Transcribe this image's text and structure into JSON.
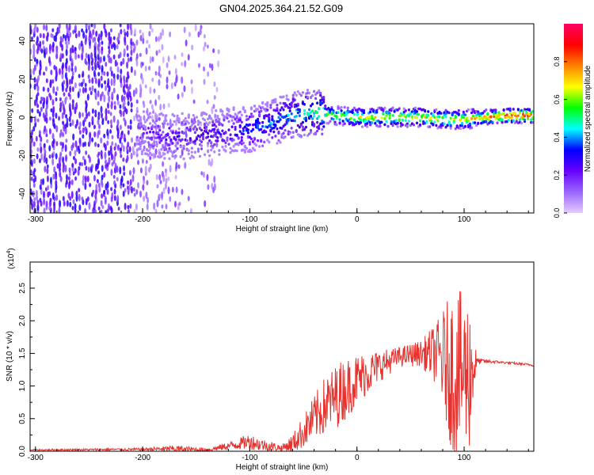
{
  "title": "GN04.2025.364.21.52.G09",
  "chart_data": [
    {
      "type": "heatmap",
      "xlabel": "Height of straight line (km)",
      "ylabel": "Frequency (Hz)",
      "xlim": [
        -305,
        165
      ],
      "ylim": [
        -50,
        49
      ],
      "xticks": [
        -300,
        -200,
        -100,
        0,
        100
      ],
      "yticks": [
        -40,
        -20,
        0,
        20,
        40
      ],
      "colorbar": {
        "label": "Normalized spectral amplitude",
        "range": [
          0,
          1
        ],
        "ticks": [
          "0.0",
          "0.2",
          "0.4",
          "0.6",
          "0.8"
        ],
        "ticks_values": [
          0.0,
          0.2,
          0.4,
          0.6,
          0.8
        ],
        "colors": [
          "#e6ccff",
          "#9966ff",
          "#6600ff",
          "#0000ff",
          "#00ffff",
          "#00ff00",
          "#ffff00",
          "#ff8000",
          "#ff0000",
          "#ff0066"
        ]
      },
      "ridge": [
        {
          "x": -200,
          "y": -8,
          "amp": 0.25
        },
        {
          "x": -180,
          "y": -10,
          "amp": 0.3
        },
        {
          "x": -160,
          "y": -10,
          "amp": 0.3
        },
        {
          "x": -140,
          "y": -9,
          "amp": 0.3
        },
        {
          "x": -120,
          "y": -7,
          "amp": 0.35
        },
        {
          "x": -100,
          "y": -6,
          "amp": 0.4
        },
        {
          "x": -80,
          "y": -3,
          "amp": 0.45
        },
        {
          "x": -60,
          "y": 1,
          "amp": 0.5
        },
        {
          "x": -40,
          "y": 3,
          "amp": 0.55
        },
        {
          "x": -20,
          "y": 1,
          "amp": 0.65
        },
        {
          "x": 0,
          "y": 0,
          "amp": 0.75
        },
        {
          "x": 20,
          "y": 0,
          "amp": 0.75
        },
        {
          "x": 40,
          "y": 0,
          "amp": 0.75
        },
        {
          "x": 60,
          "y": 0,
          "amp": 0.75
        },
        {
          "x": 80,
          "y": -1,
          "amp": 0.75
        },
        {
          "x": 100,
          "y": -1,
          "amp": 0.75
        },
        {
          "x": 120,
          "y": 0,
          "amp": 0.85
        },
        {
          "x": 140,
          "y": 1,
          "amp": 0.95
        },
        {
          "x": 160,
          "y": 1,
          "amp": 0.95
        }
      ]
    },
    {
      "type": "line",
      "xlabel": "Height of straight line (km)",
      "ylabel": "SNR (10 * v/v)",
      "ylabel_multiplier": "(x10",
      "ylabel_multiplier_exp": "4",
      "ylabel_multiplier_close": ")",
      "xlim": [
        -305,
        165
      ],
      "ylim": [
        0,
        2.9
      ],
      "xticks": [
        -300,
        -200,
        -100,
        0,
        100
      ],
      "yticks": [
        0.0,
        0.5,
        1.0,
        1.5,
        2.0,
        2.5
      ],
      "ytick_labels": [
        "0.0",
        "0.5",
        "1.0",
        "1.5",
        "2.0",
        "2.5"
      ],
      "series": [
        {
          "color": "#e8322e",
          "envelope": [
            {
              "x": -305,
              "base": 0.02,
              "amp": 0.01
            },
            {
              "x": -200,
              "base": 0.03,
              "amp": 0.02
            },
            {
              "x": -170,
              "base": 0.04,
              "amp": 0.05
            },
            {
              "x": -140,
              "base": 0.02,
              "amp": 0.03
            },
            {
              "x": -120,
              "base": 0.08,
              "amp": 0.06
            },
            {
              "x": -100,
              "base": 0.15,
              "amp": 0.12
            },
            {
              "x": -90,
              "base": 0.1,
              "amp": 0.1
            },
            {
              "x": -70,
              "base": 0.05,
              "amp": 0.05
            },
            {
              "x": -60,
              "base": 0.12,
              "amp": 0.15
            },
            {
              "x": -50,
              "base": 0.3,
              "amp": 0.25
            },
            {
              "x": -30,
              "base": 0.7,
              "amp": 0.45
            },
            {
              "x": -15,
              "base": 0.9,
              "amp": 0.5
            },
            {
              "x": 0,
              "base": 1.1,
              "amp": 0.4
            },
            {
              "x": 20,
              "base": 1.3,
              "amp": 0.25
            },
            {
              "x": 40,
              "base": 1.45,
              "amp": 0.15
            },
            {
              "x": 60,
              "base": 1.5,
              "amp": 0.2
            },
            {
              "x": 75,
              "base": 1.5,
              "amp": 0.5
            },
            {
              "x": 90,
              "base": 1.2,
              "amp": 1.3
            },
            {
              "x": 105,
              "base": 1.2,
              "amp": 1.2
            },
            {
              "x": 112,
              "base": 1.38,
              "amp": 0.05
            },
            {
              "x": 130,
              "base": 1.37,
              "amp": 0.02
            },
            {
              "x": 165,
              "base": 1.32,
              "amp": 0.02
            }
          ]
        }
      ]
    }
  ]
}
